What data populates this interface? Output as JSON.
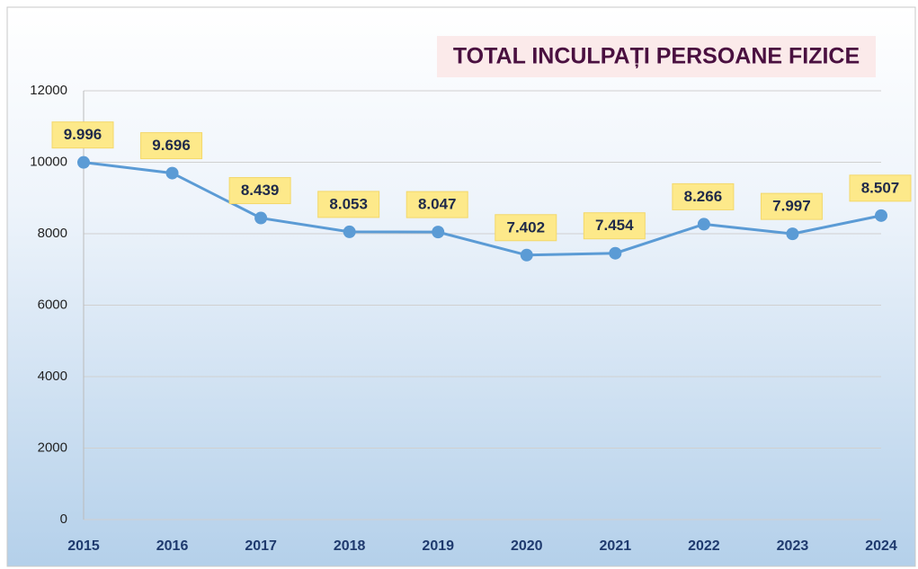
{
  "chart_data": {
    "type": "line",
    "title": "TOTAL INCULPAȚI PERSOANE FIZICE",
    "categories": [
      "2015",
      "2016",
      "2017",
      "2018",
      "2019",
      "2020",
      "2021",
      "2022",
      "2023",
      "2024"
    ],
    "values": [
      9996,
      9696,
      8439,
      8053,
      8047,
      7402,
      7454,
      8266,
      7997,
      8507
    ],
    "value_labels": [
      "9.996",
      "9.696",
      "8.439",
      "8.053",
      "8.047",
      "7.402",
      "7.454",
      "8.266",
      "7.997",
      "8.507"
    ],
    "color": "#5b9bd5",
    "ylim": [
      0,
      12000
    ],
    "yticks": [
      0,
      2000,
      4000,
      6000,
      8000,
      10000,
      12000
    ],
    "grid": true
  }
}
